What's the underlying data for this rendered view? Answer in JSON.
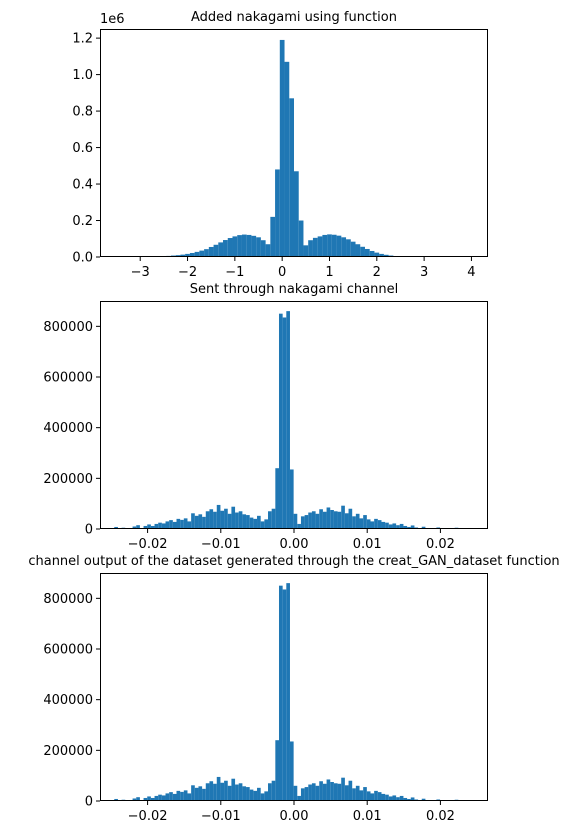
{
  "figure": {
    "background": "#ffffff",
    "bar_color": "#1f77b4"
  },
  "chart_data": [
    {
      "type": "bar",
      "title": "Added nakagami using function",
      "xlabel": "",
      "ylabel": "",
      "xlim": [
        -3.85,
        4.35
      ],
      "ylim": [
        0,
        1.25
      ],
      "y_offset_text": "1e6",
      "xticks": [
        -3,
        -2,
        -1,
        0,
        1,
        2,
        3,
        4
      ],
      "xtick_labels": [
        "−3",
        "−2",
        "−1",
        "0",
        "1",
        "2",
        "3",
        "4"
      ],
      "yticks": [
        0,
        0.2,
        0.4,
        0.6,
        0.8,
        1.0,
        1.2
      ],
      "ytick_labels": [
        "0.0",
        "0.2",
        "0.4",
        "0.6",
        "0.8",
        "1.0",
        "1.2"
      ],
      "bin_width": 0.1,
      "x": [
        -2.6,
        -2.5,
        -2.4,
        -2.3,
        -2.2,
        -2.1,
        -2.0,
        -1.9,
        -1.8,
        -1.7,
        -1.6,
        -1.5,
        -1.4,
        -1.3,
        -1.2,
        -1.1,
        -1.0,
        -0.9,
        -0.8,
        -0.7,
        -0.6,
        -0.5,
        -0.4,
        -0.3,
        -0.2,
        -0.1,
        0.0,
        0.1,
        0.2,
        0.3,
        0.4,
        0.5,
        0.6,
        0.7,
        0.8,
        0.9,
        1.0,
        1.1,
        1.2,
        1.3,
        1.4,
        1.5,
        1.6,
        1.7,
        1.8,
        1.9,
        2.0,
        2.1,
        2.2,
        2.3,
        2.4,
        2.5,
        2.6
      ],
      "values": [
        0.002,
        0.004,
        0.006,
        0.008,
        0.01,
        0.013,
        0.017,
        0.022,
        0.028,
        0.035,
        0.043,
        0.055,
        0.067,
        0.08,
        0.093,
        0.104,
        0.113,
        0.12,
        0.123,
        0.121,
        0.116,
        0.108,
        0.092,
        0.07,
        0.22,
        0.48,
        1.19,
        1.07,
        0.87,
        0.47,
        0.2,
        0.064,
        0.092,
        0.105,
        0.113,
        0.121,
        0.124,
        0.122,
        0.117,
        0.108,
        0.097,
        0.084,
        0.07,
        0.056,
        0.044,
        0.033,
        0.024,
        0.017,
        0.012,
        0.008,
        0.005,
        0.003,
        0.002
      ]
    },
    {
      "type": "bar",
      "title": "Sent through nakagami channel",
      "xlabel": "",
      "ylabel": "",
      "xlim": [
        -0.0265,
        0.0265
      ],
      "ylim": [
        0,
        900000
      ],
      "xticks": [
        -0.02,
        -0.01,
        0.0,
        0.01,
        0.02
      ],
      "xtick_labels": [
        "−0.02",
        "−0.01",
        "0.00",
        "0.01",
        "0.02"
      ],
      "yticks": [
        0,
        200000,
        400000,
        600000,
        800000
      ],
      "ytick_labels": [
        "0",
        "200000",
        "400000",
        "600000",
        "800000"
      ],
      "bin_width": 0.0005,
      "x": [
        -0.0243,
        -0.0238,
        -0.0233,
        -0.0228,
        -0.0223,
        -0.0218,
        -0.0213,
        -0.0208,
        -0.0203,
        -0.0198,
        -0.0193,
        -0.0188,
        -0.0183,
        -0.0178,
        -0.0173,
        -0.0168,
        -0.0163,
        -0.0158,
        -0.0153,
        -0.0148,
        -0.0143,
        -0.0138,
        -0.0133,
        -0.0128,
        -0.0123,
        -0.0118,
        -0.0113,
        -0.0108,
        -0.0103,
        -0.0098,
        -0.0093,
        -0.0088,
        -0.0083,
        -0.0078,
        -0.0073,
        -0.0068,
        -0.0063,
        -0.0058,
        -0.0053,
        -0.0048,
        -0.0043,
        -0.0038,
        -0.0033,
        -0.0028,
        -0.0023,
        -0.0018,
        -0.0013,
        -0.0008,
        -0.0003,
        0.0002,
        0.0007,
        0.0012,
        0.0017,
        0.0022,
        0.0027,
        0.0032,
        0.0037,
        0.0042,
        0.0047,
        0.0052,
        0.0057,
        0.0062,
        0.0067,
        0.0072,
        0.0077,
        0.0082,
        0.0087,
        0.0092,
        0.0097,
        0.0102,
        0.0107,
        0.0112,
        0.0117,
        0.0122,
        0.0127,
        0.0132,
        0.0137,
        0.0142,
        0.0147,
        0.0152,
        0.0157,
        0.0162,
        0.0167,
        0.0172,
        0.0177,
        0.0182,
        0.0187,
        0.0192,
        0.0197,
        0.0202,
        0.0207,
        0.0212,
        0.0217,
        0.0222,
        0.0227,
        0.0232,
        0.0237
      ],
      "values": [
        8000,
        0,
        5000,
        0,
        4000,
        10000,
        15000,
        0,
        12000,
        18000,
        12000,
        20000,
        25000,
        22000,
        30000,
        35000,
        28000,
        40000,
        36000,
        42000,
        30000,
        62000,
        52000,
        58000,
        48000,
        70000,
        78000,
        68000,
        95000,
        72000,
        80000,
        60000,
        88000,
        65000,
        70000,
        58000,
        55000,
        45000,
        40000,
        52000,
        30000,
        38000,
        70000,
        80000,
        240000,
        850000,
        835000,
        860000,
        235000,
        60000,
        20000,
        50000,
        55000,
        65000,
        70000,
        60000,
        78000,
        68000,
        85000,
        75000,
        70000,
        68000,
        92000,
        62000,
        80000,
        50000,
        60000,
        42000,
        55000,
        38000,
        30000,
        40000,
        35000,
        28000,
        25000,
        18000,
        22000,
        15000,
        20000,
        12000,
        8000,
        14000,
        6000,
        3000,
        9000,
        4000,
        0,
        2000,
        6000,
        0,
        3000,
        0,
        2000,
        5000,
        0,
        0,
        0
      ]
    },
    {
      "type": "bar",
      "title": "channel output of the dataset generated through the creat_GAN_dataset function",
      "xlabel": "",
      "ylabel": "",
      "xlim": [
        -0.0265,
        0.0265
      ],
      "ylim": [
        0,
        900000
      ],
      "xticks": [
        -0.02,
        -0.01,
        0.0,
        0.01,
        0.02
      ],
      "xtick_labels": [
        "−0.02",
        "−0.01",
        "0.00",
        "0.01",
        "0.02"
      ],
      "yticks": [
        0,
        200000,
        400000,
        600000,
        800000
      ],
      "ytick_labels": [
        "0",
        "200000",
        "400000",
        "600000",
        "800000"
      ],
      "bin_width": 0.0005,
      "x": [
        -0.0243,
        -0.0238,
        -0.0233,
        -0.0228,
        -0.0223,
        -0.0218,
        -0.0213,
        -0.0208,
        -0.0203,
        -0.0198,
        -0.0193,
        -0.0188,
        -0.0183,
        -0.0178,
        -0.0173,
        -0.0168,
        -0.0163,
        -0.0158,
        -0.0153,
        -0.0148,
        -0.0143,
        -0.0138,
        -0.0133,
        -0.0128,
        -0.0123,
        -0.0118,
        -0.0113,
        -0.0108,
        -0.0103,
        -0.0098,
        -0.0093,
        -0.0088,
        -0.0083,
        -0.0078,
        -0.0073,
        -0.0068,
        -0.0063,
        -0.0058,
        -0.0053,
        -0.0048,
        -0.0043,
        -0.0038,
        -0.0033,
        -0.0028,
        -0.0023,
        -0.0018,
        -0.0013,
        -0.0008,
        -0.0003,
        0.0002,
        0.0007,
        0.0012,
        0.0017,
        0.0022,
        0.0027,
        0.0032,
        0.0037,
        0.0042,
        0.0047,
        0.0052,
        0.0057,
        0.0062,
        0.0067,
        0.0072,
        0.0077,
        0.0082,
        0.0087,
        0.0092,
        0.0097,
        0.0102,
        0.0107,
        0.0112,
        0.0117,
        0.0122,
        0.0127,
        0.0132,
        0.0137,
        0.0142,
        0.0147,
        0.0152,
        0.0157,
        0.0162,
        0.0167,
        0.0172,
        0.0177,
        0.0182,
        0.0187,
        0.0192,
        0.0197,
        0.0202,
        0.0207,
        0.0212,
        0.0217,
        0.0222,
        0.0227,
        0.0232,
        0.0237
      ],
      "values": [
        8000,
        0,
        5000,
        0,
        4000,
        10000,
        15000,
        0,
        12000,
        18000,
        12000,
        20000,
        25000,
        22000,
        30000,
        35000,
        28000,
        40000,
        36000,
        42000,
        30000,
        62000,
        52000,
        58000,
        48000,
        70000,
        78000,
        68000,
        95000,
        72000,
        80000,
        60000,
        88000,
        65000,
        70000,
        58000,
        55000,
        45000,
        40000,
        52000,
        30000,
        38000,
        70000,
        80000,
        240000,
        850000,
        835000,
        860000,
        235000,
        60000,
        20000,
        50000,
        55000,
        65000,
        70000,
        60000,
        78000,
        68000,
        85000,
        75000,
        70000,
        68000,
        92000,
        62000,
        80000,
        50000,
        60000,
        42000,
        55000,
        38000,
        30000,
        40000,
        35000,
        28000,
        25000,
        18000,
        22000,
        15000,
        20000,
        12000,
        8000,
        14000,
        6000,
        3000,
        9000,
        4000,
        0,
        2000,
        6000,
        0,
        3000,
        0,
        2000,
        5000,
        0,
        0,
        0
      ]
    }
  ]
}
